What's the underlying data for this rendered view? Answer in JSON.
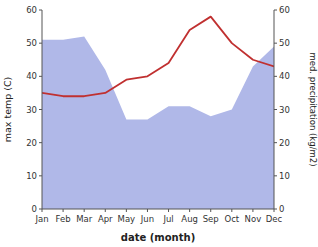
{
  "chart_data": {
    "type": "line",
    "xlabel": "date (month)",
    "ylabel": "max temp (C)",
    "y2label": "med. precipitation (kg/m2)",
    "categories": [
      "Jan",
      "Feb",
      "Mar",
      "Apr",
      "May",
      "Jun",
      "Jul",
      "Aug",
      "Sep",
      "Oct",
      "Nov",
      "Dec"
    ],
    "series": [
      {
        "type": "area",
        "axis": "y2",
        "color": "#b0b8e8",
        "values": [
          51,
          51,
          52,
          42,
          27,
          27,
          31,
          31,
          28,
          30,
          43,
          49
        ]
      },
      {
        "type": "line",
        "color": "#c03030",
        "values": [
          35,
          34,
          34,
          35,
          39,
          40,
          44,
          54,
          58,
          50,
          45,
          43
        ]
      }
    ],
    "ylim": [
      0,
      60
    ],
    "yticks": [
      0,
      10,
      20,
      30,
      40,
      50,
      60
    ],
    "y2lim": [
      0,
      60
    ],
    "y2ticks": [
      0,
      10,
      20,
      30,
      40,
      50,
      60
    ],
    "grid": false
  }
}
